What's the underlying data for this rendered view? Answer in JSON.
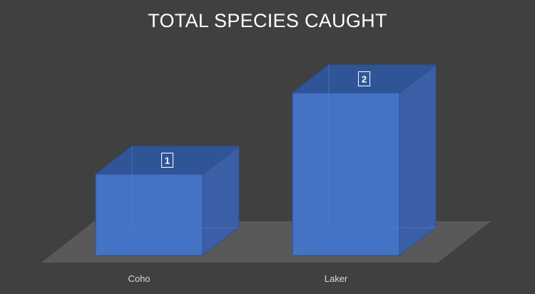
{
  "chart_data": {
    "type": "bar",
    "title": "TOTAL SPECIES CAUGHT",
    "categories": [
      "Coho",
      "Laker"
    ],
    "values": [
      1,
      2
    ],
    "data_labels": [
      "1",
      "2"
    ],
    "xlabel": "",
    "ylabel": "",
    "ylim": [
      0,
      2
    ],
    "grid": false,
    "legend": "none",
    "style": "3d-column",
    "colors": {
      "background": "#404040",
      "floor": "#595959",
      "bar_front": "#4472c4",
      "bar_top": "#2f5597",
      "bar_side": "#3a5fa6",
      "text": "#ffffff",
      "axis_text": "#d9d9d9"
    }
  }
}
